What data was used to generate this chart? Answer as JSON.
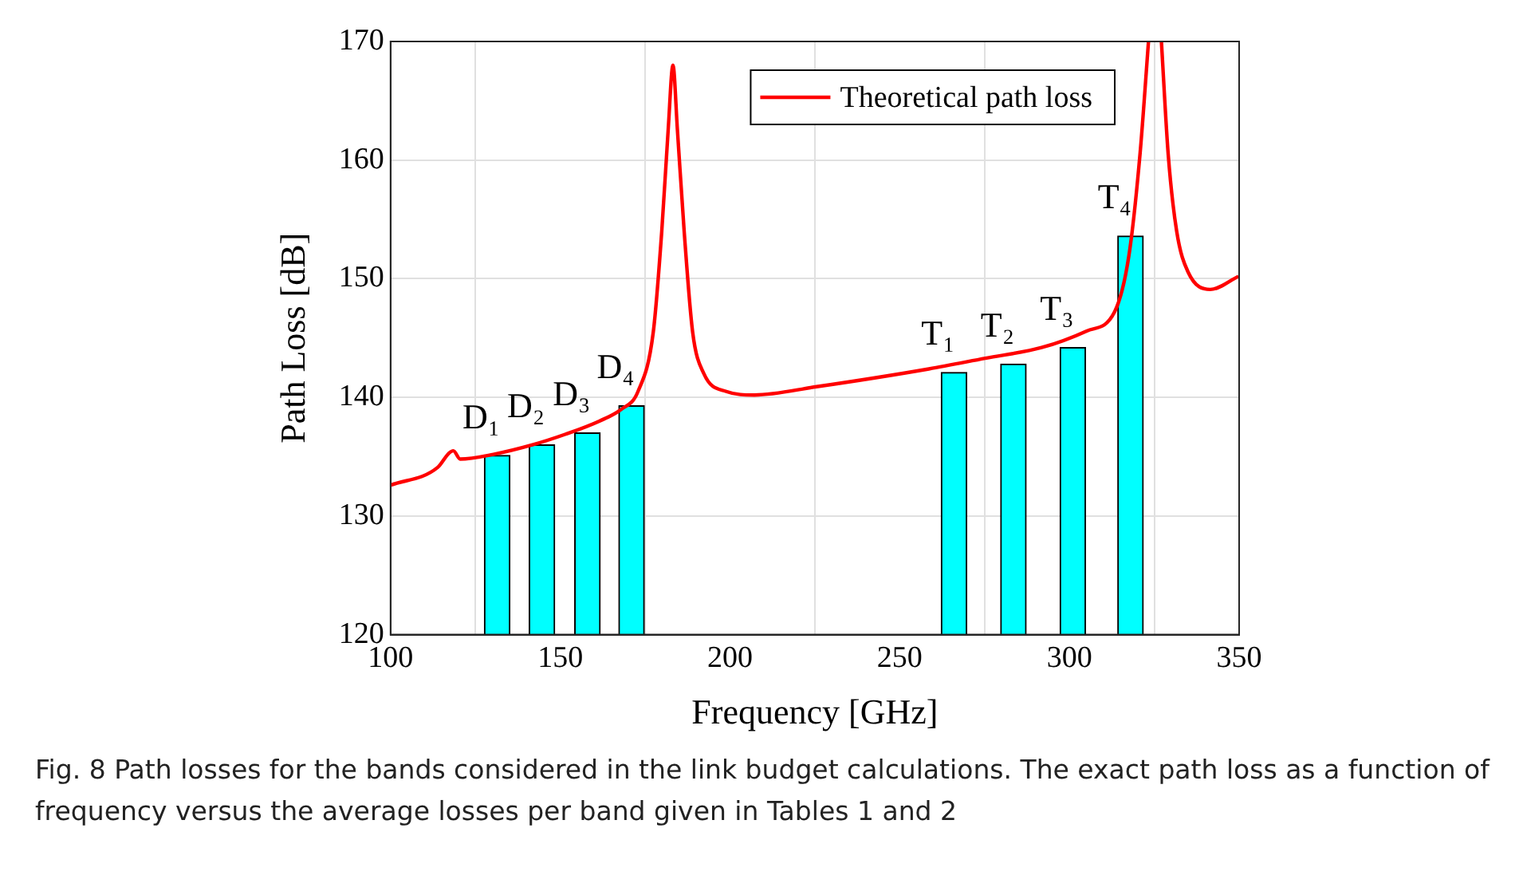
{
  "chart_data": {
    "type": "bar",
    "xlabel": "Frequency [GHz]",
    "ylabel": "Path Loss [dB]",
    "xlim": [
      100,
      350
    ],
    "xticks": [
      100,
      150,
      200,
      250,
      300,
      350
    ],
    "ylim": [
      120,
      170
    ],
    "yticks": [
      120,
      130,
      140,
      150,
      160,
      170
    ],
    "grid": true,
    "legend": "top right",
    "marker": "none",
    "line_style": "solid",
    "series": [
      {
        "color": "#00ffff",
        "x": [
          131.4,
          144.6,
          158,
          171,
          266,
          283.5,
          301,
          318
        ],
        "values": [
          135.1,
          136.0,
          137.0,
          139.3,
          142.1,
          142.8,
          144.2,
          153.6
        ]
      },
      {
        "type": "line",
        "name": "Theoretical path loss",
        "color": "#ff0000",
        "x": [
          100,
          113.9,
          117.2,
          118.5,
          120.5,
          130.3,
          141.8,
          151.6,
          161.5,
          168,
          172.9,
          177.4,
          179.9,
          181.8,
          183.2,
          184.5,
          186.5,
          189,
          192.3,
          198.9,
          207.2,
          225.5,
          258.6,
          275.2,
          291.8,
          305.1,
          313.3,
          317.5,
          320.8,
          323.3,
          325.2,
          327.1,
          329.1,
          331.6,
          334.9,
          341.5,
          349.8
        ],
        "values": [
          132.6,
          134.1,
          135.3,
          135.5,
          134.8,
          135.2,
          136.0,
          136.9,
          138.0,
          139.0,
          140.5,
          145.5,
          154.0,
          162.6,
          168.0,
          162.6,
          154.0,
          145.5,
          142.0,
          140.5,
          140.2,
          140.9,
          142.4,
          143.3,
          144.2,
          145.6,
          147.2,
          151.9,
          160.5,
          170,
          null,
          170,
          160.5,
          154.0,
          150.6,
          149.1,
          150.2
        ]
      }
    ],
    "annotations": [
      {
        "text": "D₁",
        "x": 131.4,
        "y": 135.1
      },
      {
        "text": "D₂",
        "x": 144.6,
        "y": 136.0
      },
      {
        "text": "D₃",
        "x": 158,
        "y": 137.0
      },
      {
        "text": "D₄",
        "x": 171,
        "y": 139.3
      },
      {
        "text": "T₁",
        "x": 266,
        "y": 142.1
      },
      {
        "text": "T₂",
        "x": 283.5,
        "y": 142.8
      },
      {
        "text": "T₃",
        "x": 301,
        "y": 144.2
      },
      {
        "text": "T₄",
        "x": 318,
        "y": 153.6
      },
      "Fig. 8 Path losses for the bands considered in the link budget calculations. The exact path loss as a function of frequency versus the average losses per band given in Tables 1 and 2"
    ]
  }
}
